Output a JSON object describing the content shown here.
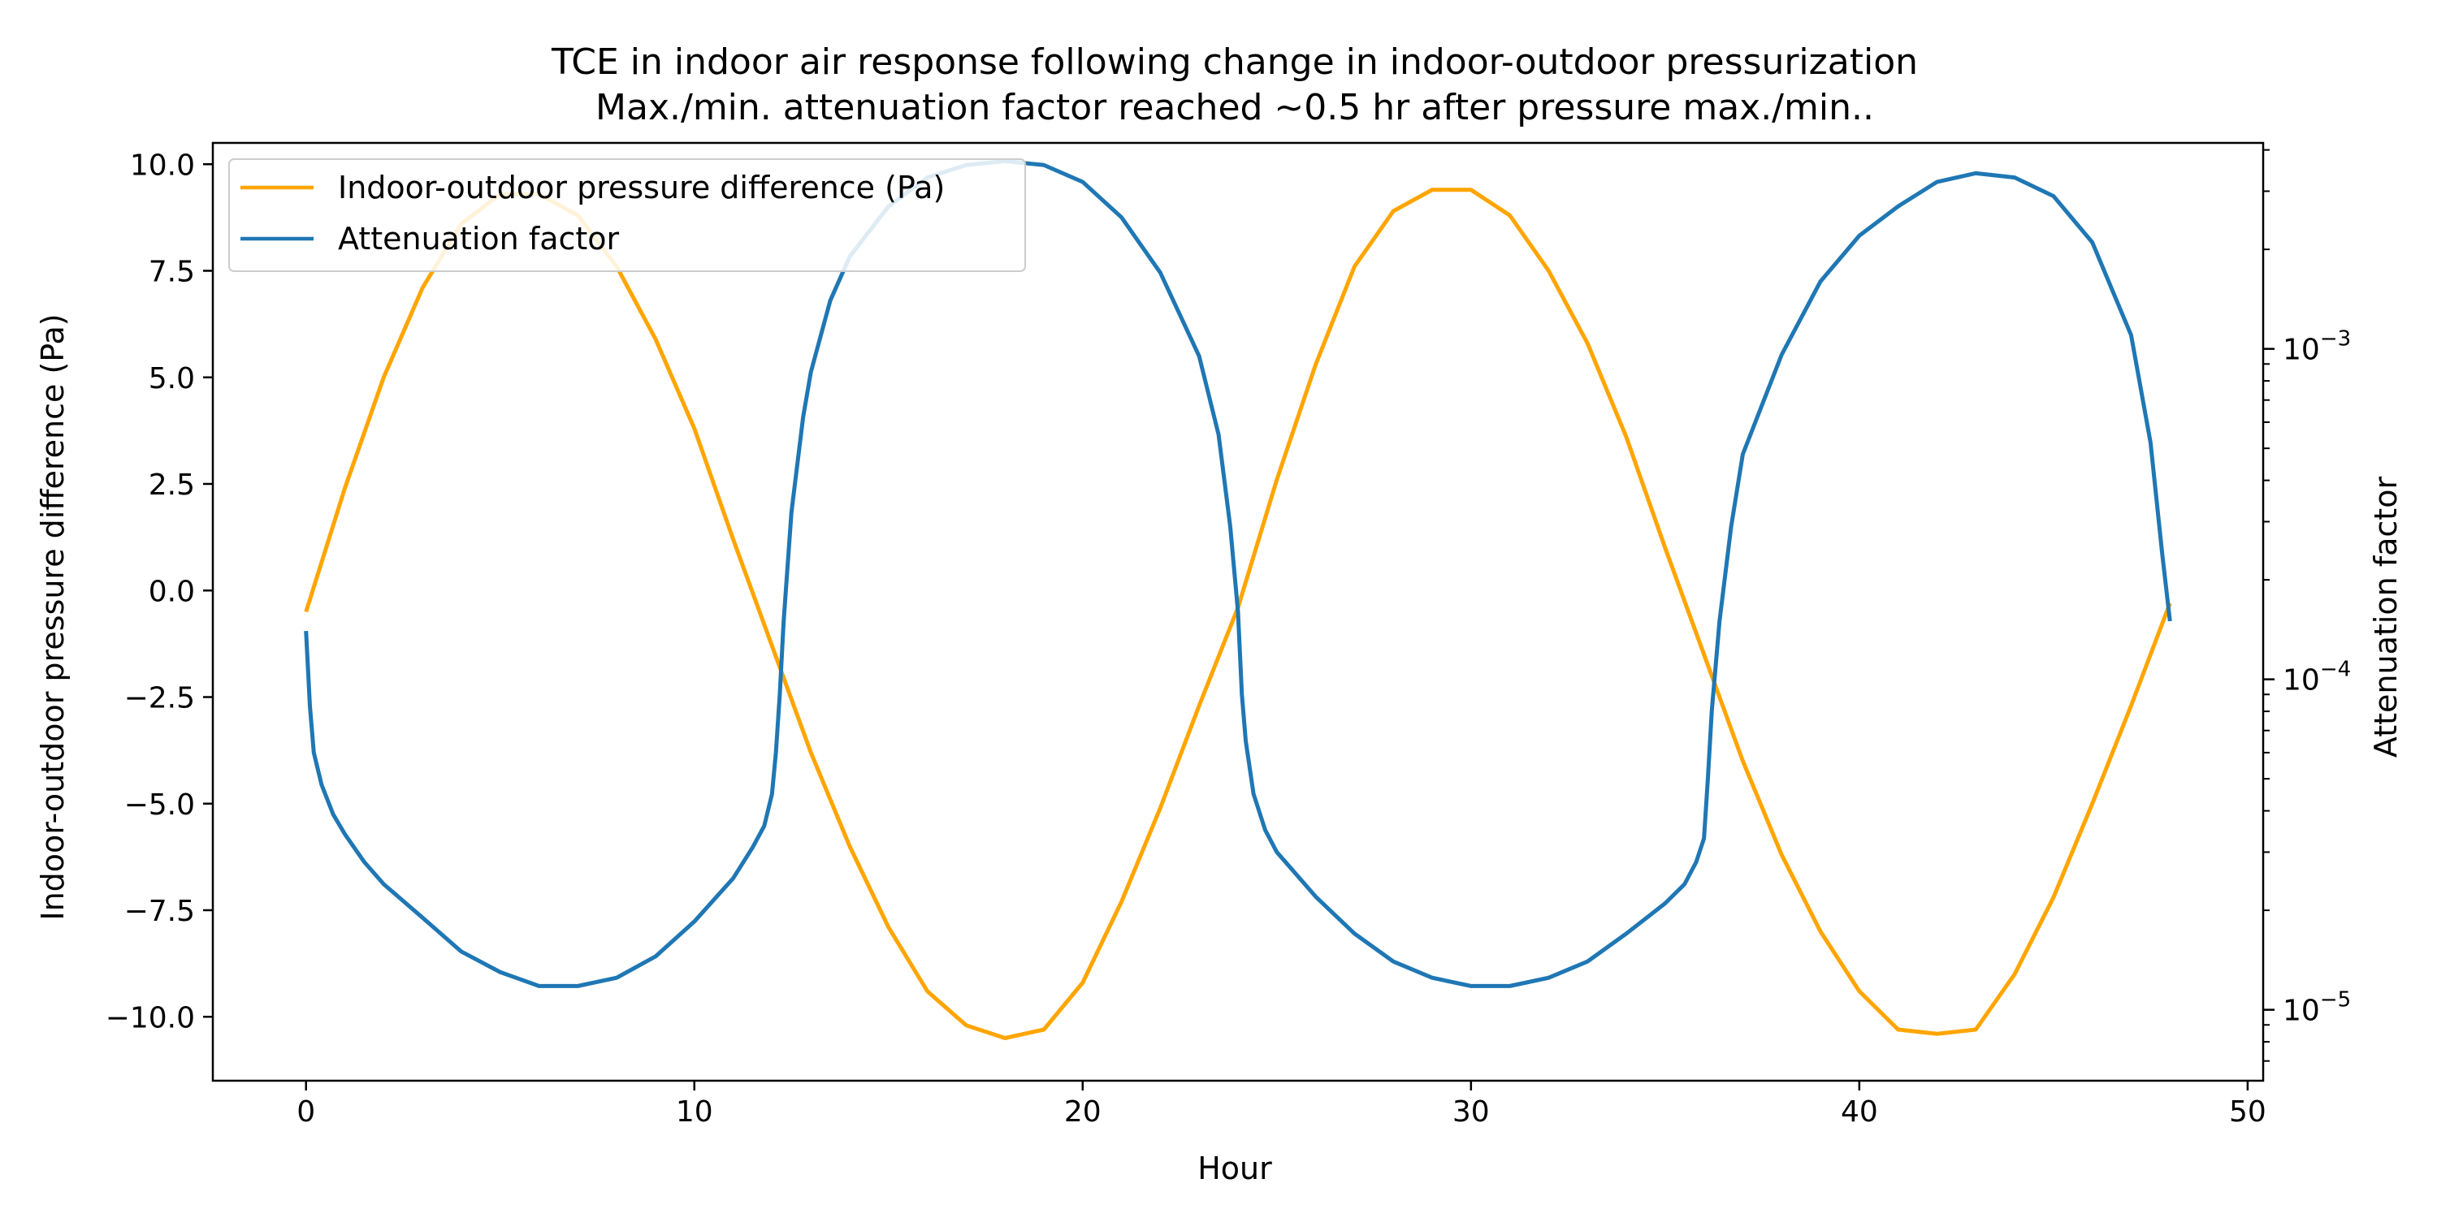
{
  "chart_data": {
    "type": "line",
    "title": "TCE in indoor air response following change in indoor-outdoor pressurization",
    "subtitle": "Max./min. attenuation factor reached ~0.5 hr after pressure max./min..",
    "xlabel": "Hour",
    "ylabel_left": "Indoor-outdoor pressure difference (Pa)",
    "ylabel_right": "Attenuation factor",
    "xlim": [
      -2.4,
      50.4
    ],
    "ylim_left": [
      -11.5,
      10.5
    ],
    "ylim_right": [
      6.1e-06,
      0.0042
    ],
    "right_axis_scale": "log",
    "grid": false,
    "legend_position": "top-left",
    "x_ticks": [
      0,
      10,
      20,
      30,
      40,
      50
    ],
    "x_tick_labels": [
      "0",
      "10",
      "20",
      "30",
      "40",
      "50"
    ],
    "y_left_ticks": [
      10.0,
      7.5,
      5.0,
      2.5,
      0.0,
      -2.5,
      -5.0,
      -7.5,
      -10.0
    ],
    "y_left_tick_labels": [
      "10.0",
      "7.5",
      "5.0",
      "2.5",
      "0.0",
      "−2.5",
      "−5.0",
      "−7.5",
      "−10.0"
    ],
    "y_right_ticks": [
      0.001,
      0.0001,
      1e-05
    ],
    "y_right_tick_labels": [
      {
        "base": "10",
        "exp": "−3"
      },
      {
        "base": "10",
        "exp": "−4"
      },
      {
        "base": "10",
        "exp": "−5"
      }
    ],
    "series": [
      {
        "name": "Indoor-outdoor pressure difference (Pa)",
        "color": "#FFA500",
        "axis": "left",
        "x": [
          0,
          1,
          2,
          3,
          4,
          5,
          6,
          7,
          8,
          9,
          10,
          11,
          12,
          13,
          14,
          15,
          16,
          17,
          18,
          19,
          20,
          21,
          22,
          23,
          24,
          25,
          26,
          27,
          28,
          29,
          30,
          31,
          32,
          33,
          34,
          35,
          36,
          37,
          38,
          39,
          40,
          41,
          42,
          43,
          44,
          45,
          46,
          47,
          48
        ],
        "values": [
          -0.5,
          2.4,
          5.0,
          7.1,
          8.6,
          9.3,
          9.3,
          8.8,
          7.6,
          5.9,
          3.8,
          1.2,
          -1.3,
          -3.8,
          -6.0,
          -7.9,
          -9.4,
          -10.2,
          -10.5,
          -10.3,
          -9.2,
          -7.3,
          -5.1,
          -2.7,
          -0.4,
          2.6,
          5.3,
          7.6,
          8.9,
          9.4,
          9.4,
          8.8,
          7.5,
          5.8,
          3.6,
          1.0,
          -1.5,
          -4.0,
          -6.2,
          -8.0,
          -9.4,
          -10.3,
          -10.4,
          -10.3,
          -9.0,
          -7.2,
          -5.0,
          -2.7,
          -0.3
        ]
      },
      {
        "name": "Attenuation factor",
        "color": "#1F77B4",
        "axis": "right",
        "x": [
          0,
          0.1,
          0.2,
          0.4,
          0.7,
          1,
          1.5,
          2,
          3,
          4,
          5,
          6,
          7,
          8,
          9,
          10,
          11,
          11.5,
          11.8,
          12.0,
          12.1,
          12.2,
          12.3,
          12.5,
          12.8,
          13,
          13.5,
          14,
          15,
          16,
          17,
          18,
          19,
          20,
          21,
          22,
          23,
          23.5,
          23.8,
          24,
          24.1,
          24.2,
          24.4,
          24.7,
          25,
          26,
          27,
          28,
          29,
          30,
          31,
          32,
          33,
          34,
          35,
          35.5,
          35.8,
          36,
          36.1,
          36.2,
          36.4,
          36.7,
          37,
          38,
          39,
          40,
          41,
          42,
          43,
          44,
          45,
          46,
          47,
          47.5,
          47.8,
          48
        ],
        "values": [
          0.00014,
          8.3e-05,
          6e-05,
          4.8e-05,
          3.9e-05,
          3.4e-05,
          2.8e-05,
          2.4e-05,
          1.9e-05,
          1.5e-05,
          1.3e-05,
          1.18e-05,
          1.18e-05,
          1.25e-05,
          1.45e-05,
          1.85e-05,
          2.5e-05,
          3.1e-05,
          3.6e-05,
          4.5e-05,
          6e-05,
          9e-05,
          0.00015,
          0.00032,
          0.00062,
          0.00085,
          0.0014,
          0.0019,
          0.0027,
          0.0033,
          0.0036,
          0.0037,
          0.0036,
          0.0032,
          0.0025,
          0.0017,
          0.00095,
          0.00055,
          0.00029,
          0.00016,
          9e-05,
          6.5e-05,
          4.5e-05,
          3.5e-05,
          3e-05,
          2.2e-05,
          1.7e-05,
          1.4e-05,
          1.25e-05,
          1.18e-05,
          1.18e-05,
          1.25e-05,
          1.4e-05,
          1.7e-05,
          2.1e-05,
          2.4e-05,
          2.8e-05,
          3.3e-05,
          5e-05,
          8e-05,
          0.00015,
          0.00029,
          0.00048,
          0.00096,
          0.0016,
          0.0022,
          0.0027,
          0.0032,
          0.0034,
          0.0033,
          0.0029,
          0.0021,
          0.0011,
          0.00052,
          0.00024,
          0.00015
        ]
      }
    ]
  }
}
